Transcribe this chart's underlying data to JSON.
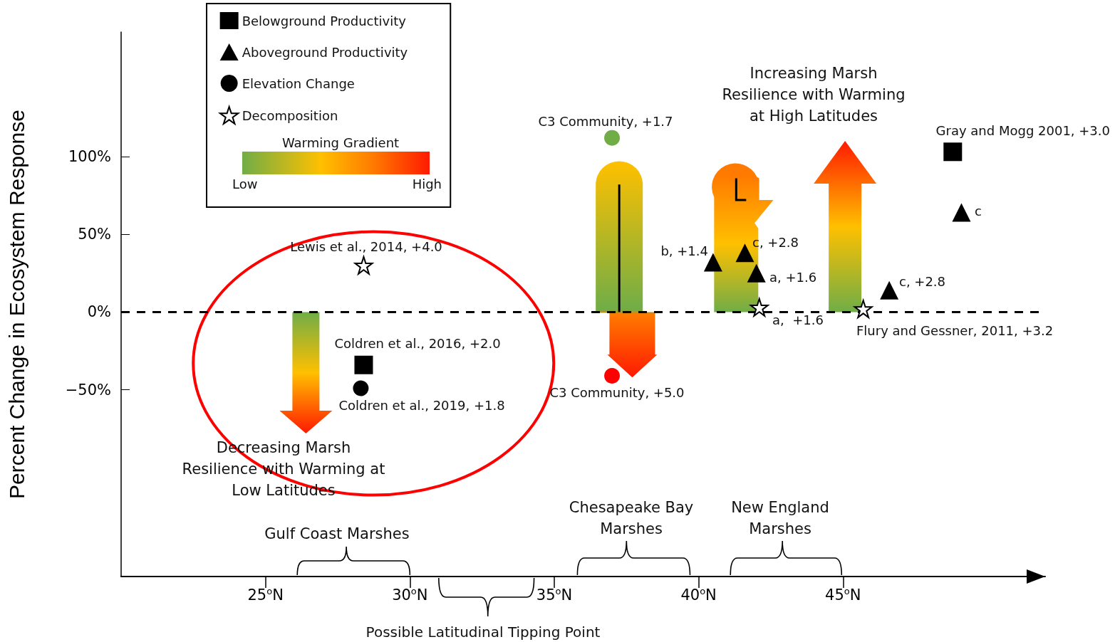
{
  "chart_data": {
    "type": "scatter",
    "ylabel": "Percent Change in Ecosystem Response",
    "xlim": [
      20,
      52
    ],
    "xticks": [
      {
        "value": 25,
        "label": "25$^{o}$N"
      },
      {
        "value": 30,
        "label": "30$^{o}$N"
      },
      {
        "value": 35,
        "label": "35$^{o}$N"
      },
      {
        "value": 40,
        "label": "40$^{o}$N"
      },
      {
        "value": 45,
        "label": "45$^{o}$N"
      }
    ],
    "ylim": [
      -170,
      180
    ],
    "yticks": [
      {
        "value": -50,
        "label": "−50%"
      },
      {
        "value": 0,
        "label": "0%"
      },
      {
        "value": 50,
        "label": "50%"
      },
      {
        "value": 100,
        "label": "100%"
      }
    ],
    "grid": false,
    "legend": "top left",
    "ref_lines": [
      {
        "axis": "y",
        "value": 0,
        "color": "#000000",
        "line_style": "dashed"
      }
    ],
    "series": [
      {
        "name": "Belowground Productivity",
        "marker": "square",
        "color": "#000000",
        "x": [
          28.4,
          48.8
        ],
        "values": [
          -34,
          103
        ]
      },
      {
        "name": "Aboveground Productivity",
        "marker": "triangle",
        "color": "#000000",
        "x": [
          40.5,
          41.6,
          42.0,
          46.6,
          49.1
        ],
        "values": [
          32,
          38,
          25,
          14,
          64
        ]
      },
      {
        "name": "Elevation Change",
        "marker": "circle",
        "color": "#000000",
        "colors": [
          "#000000",
          "#70ad47",
          "#ff0000"
        ],
        "x": [
          28.3,
          37.0,
          37.0
        ],
        "values": [
          -49,
          112,
          -41
        ]
      },
      {
        "name": "Decomposition",
        "marker": "star",
        "color": "#000000",
        "x": [
          28.4,
          42.1,
          45.7
        ],
        "values": [
          30,
          3,
          2
        ]
      }
    ],
    "annotations": [
      "Warming Gradient",
      "Low",
      "High",
      "Possible Latitudinal Tipping Point",
      "Lewis et al., 2014, +4.0",
      "Coldren et al., 2016, +2.0",
      "Coldren et al., 2019, +1.8",
      "C3 Community, +1.7",
      "C3 Community, +5.0",
      "b, +1.4",
      "c, +2.8",
      "a, +1.6",
      "a,  +1.6",
      "Flury and Gessner, 2011, +3.2",
      "c, +2.8",
      "Gray and Mogg 2001, +3.0",
      "c",
      "Increasing Marsh\nResilience with Warming\nat High Latitudes",
      "Decreasing Marsh\nResilience with Warming at\nLow Latitudes",
      "Gulf Coast Marshes",
      "Chesapeake Bay\nMarshes",
      "New England\nMarshes"
    ]
  }
}
